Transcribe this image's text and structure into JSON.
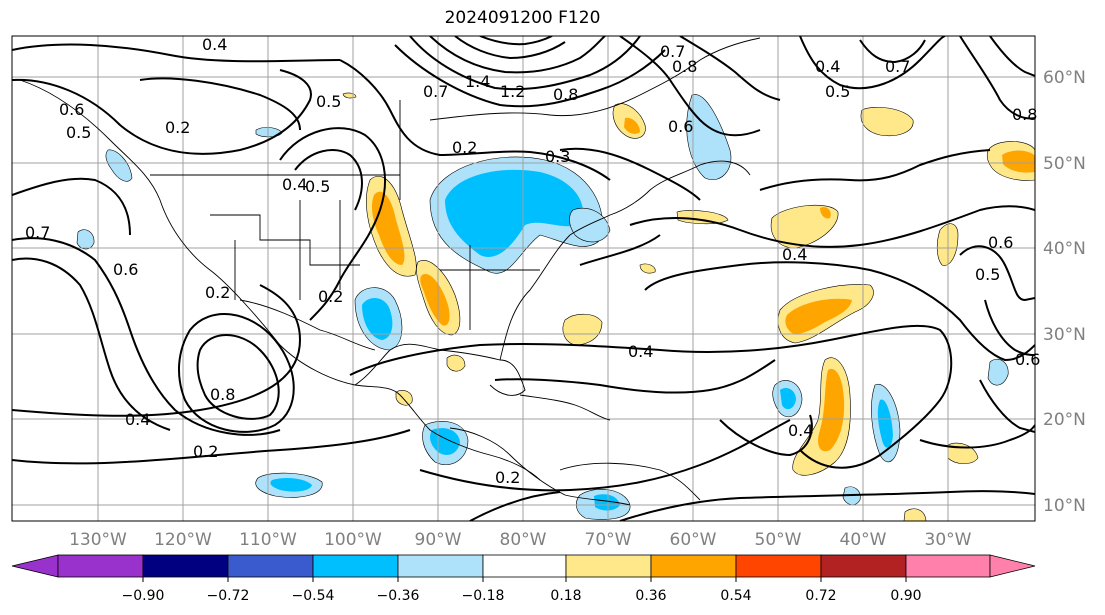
{
  "title": "2024091200 F120",
  "map": {
    "lon_labels": [
      "130°W",
      "120°W",
      "110°W",
      "100°W",
      "90°W",
      "80°W",
      "70°W",
      "60°W",
      "50°W",
      "40°W",
      "30°W"
    ],
    "lat_labels": [
      "60°N",
      "50°N",
      "40°N",
      "30°N",
      "20°N",
      "10°N"
    ]
  },
  "colorbar": {
    "ticks": [
      "−0.90",
      "−0.72",
      "−0.54",
      "−0.36",
      "−0.18",
      "0.18",
      "0.36",
      "0.54",
      "0.72",
      "0.90"
    ],
    "under_color": "#9932cc",
    "over_color": "#ff80aa",
    "colors": [
      "#9932cc",
      "#000080",
      "#3a5bcd",
      "#00bfff",
      "#aee2fa",
      "#ffffff",
      "#ffe88a",
      "#ffa500",
      "#ff4500",
      "#b22222",
      "#ff80aa"
    ]
  },
  "contour_labels": [
    "0.4",
    "0.2",
    "0.5",
    "0.4",
    "0.7",
    "0.6",
    "0.2",
    "0.8",
    "0.4",
    "0.2",
    "0.2",
    "1.4",
    "1.2",
    "0.7",
    "0.8",
    "0.3",
    "0.2",
    "0.7",
    "0.8",
    "0.6",
    "0.4",
    "0.5",
    "0.7",
    "0.8",
    "0.4",
    "0.6",
    "0.5",
    "0.6",
    "0.4",
    "0.4",
    "0.2",
    "0.6",
    "0.5",
    "0.5"
  ]
}
